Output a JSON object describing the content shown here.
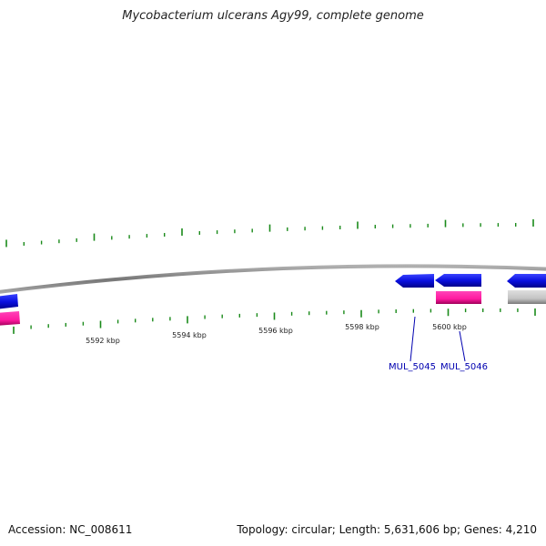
{
  "title": "Mycobacterium ulcerans Agy99, complete genome",
  "footer": {
    "accession": "Accession: NC_008611",
    "summary": "Topology: circular; Length: 5,631,606 bp; Genes: 4,210"
  },
  "colors": {
    "backbone": "#8a8a8a",
    "tick": "#1a8a1a",
    "forward_gene": "#0a14f0",
    "rna": "#ff1aa0",
    "other_feature": "#c8c8c8",
    "label": "#0000b0"
  },
  "scale_labels": [
    "5592 kbp",
    "5594 kbp",
    "5596 kbp",
    "5598 kbp",
    "5600 kbp"
  ],
  "gene_labels": [
    "MUL_5045",
    "MUL_5046"
  ],
  "icons": {
    "feature_arrow": "arrow-left-shape"
  }
}
